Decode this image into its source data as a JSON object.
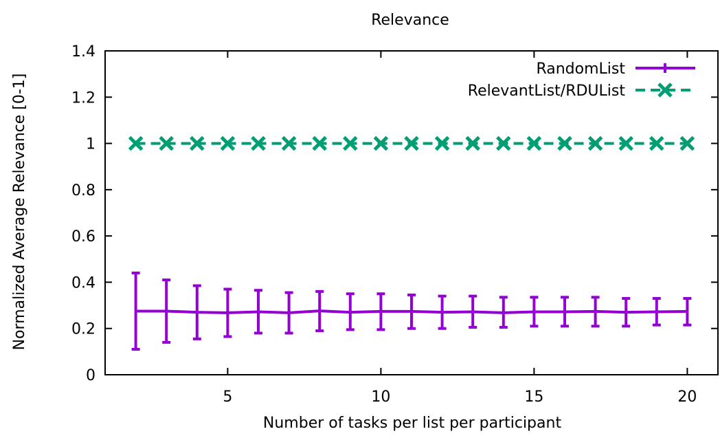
{
  "chart_data": {
    "type": "line",
    "title": "Relevance",
    "xlabel": "Number of tasks per list per participant",
    "ylabel": "Normalized Average Relevance [0-1]",
    "xlim": [
      1,
      21
    ],
    "ylim": [
      0,
      1.4
    ],
    "xticks": [
      5,
      10,
      15,
      20
    ],
    "yticks": [
      0,
      0.2,
      0.4,
      0.6,
      0.8,
      1,
      1.2,
      1.4
    ],
    "ytick_labels": [
      "0",
      "0.2",
      "0.4",
      "0.6",
      "0.8",
      "1",
      "1.2",
      "1.4"
    ],
    "grid": false,
    "legend_position": "top-right",
    "series": [
      {
        "name": "RandomList",
        "style": "solid-errorbars",
        "color": "#9400d3",
        "x": [
          2,
          3,
          4,
          5,
          6,
          7,
          8,
          9,
          10,
          11,
          12,
          13,
          14,
          15,
          16,
          17,
          18,
          19,
          20
        ],
        "y": [
          0.275,
          0.275,
          0.27,
          0.268,
          0.272,
          0.268,
          0.276,
          0.27,
          0.274,
          0.274,
          0.27,
          0.272,
          0.268,
          0.272,
          0.272,
          0.274,
          0.27,
          0.272,
          0.274
        ],
        "ylow": [
          0.11,
          0.14,
          0.155,
          0.165,
          0.18,
          0.18,
          0.19,
          0.195,
          0.195,
          0.2,
          0.2,
          0.205,
          0.205,
          0.21,
          0.21,
          0.21,
          0.21,
          0.215,
          0.215
        ],
        "yhigh": [
          0.44,
          0.41,
          0.385,
          0.37,
          0.365,
          0.355,
          0.36,
          0.35,
          0.35,
          0.345,
          0.34,
          0.34,
          0.335,
          0.335,
          0.335,
          0.335,
          0.33,
          0.33,
          0.33
        ]
      },
      {
        "name": "RelevantList/RDUList",
        "style": "dashed-x-markers",
        "color": "#009e73",
        "x": [
          2,
          3,
          4,
          5,
          6,
          7,
          8,
          9,
          10,
          11,
          12,
          13,
          14,
          15,
          16,
          17,
          18,
          19,
          20
        ],
        "y": [
          1,
          1,
          1,
          1,
          1,
          1,
          1,
          1,
          1,
          1,
          1,
          1,
          1,
          1,
          1,
          1,
          1,
          1,
          1
        ]
      }
    ]
  }
}
